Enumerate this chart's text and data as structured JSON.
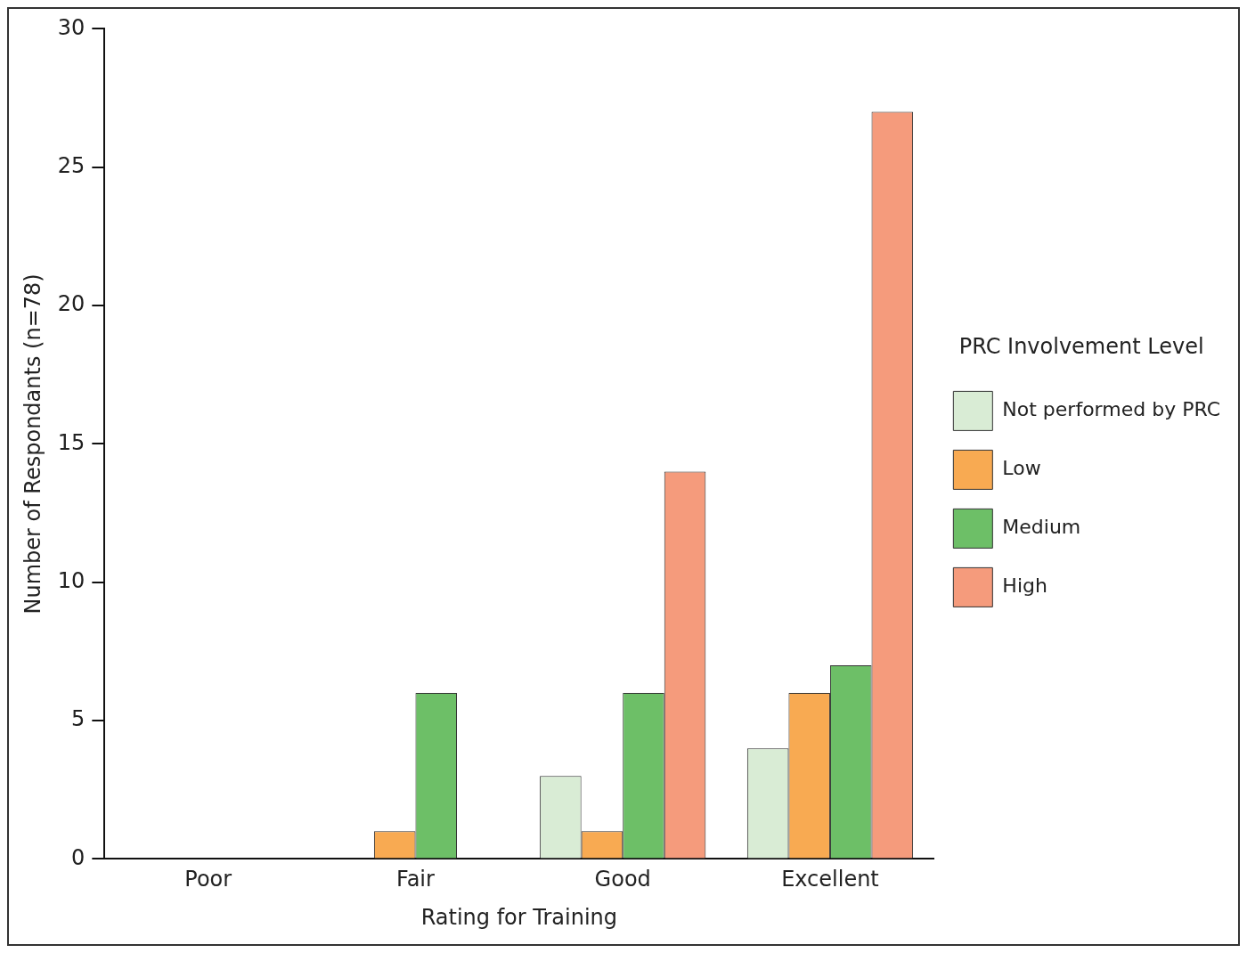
{
  "chart_data": {
    "type": "bar",
    "xlabel": "Rating for Training",
    "ylabel": "Number of Respondants (n=78)",
    "legend_title": "PRC Involvement Level",
    "categories": [
      "Poor",
      "Fair",
      "Good",
      "Excellent"
    ],
    "series": [
      {
        "name": "Not performed by PRC",
        "color": "#d9ecd5",
        "values": [
          0,
          0,
          3,
          4
        ]
      },
      {
        "name": "Low",
        "color": "#f8aa52",
        "values": [
          0,
          1,
          1,
          6
        ]
      },
      {
        "name": "Medium",
        "color": "#6dbf67",
        "values": [
          0,
          6,
          6,
          7
        ]
      },
      {
        "name": "High",
        "color": "#f59b7c",
        "values": [
          0,
          0,
          14,
          27
        ]
      }
    ],
    "ylim": [
      0,
      30
    ],
    "yticks": [
      0,
      5,
      10,
      15,
      20,
      25,
      30
    ],
    "grid": false,
    "legend": "right"
  }
}
